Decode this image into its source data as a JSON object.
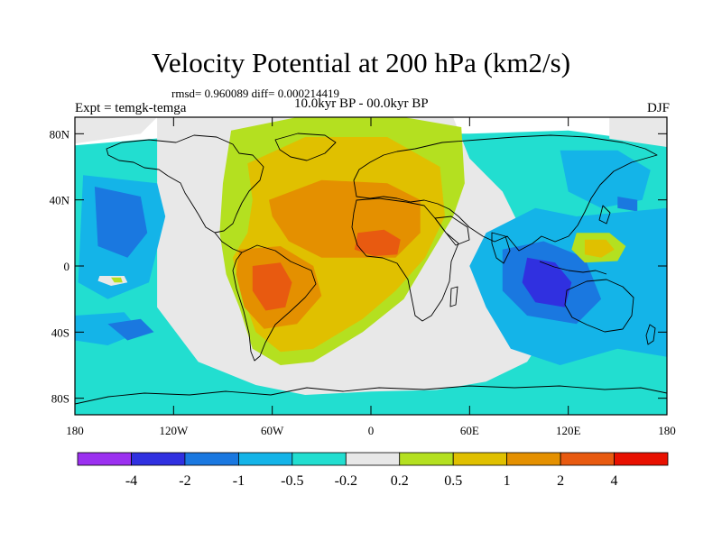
{
  "header": {
    "title": "Velocity Potential at 200 hPa (km2/s)",
    "stats": "rmsd= 0.960089 diff= 0.000214419",
    "period": "10.0kyr BP - 00.0kyr BP",
    "experiment": "Expt = temgk-temga",
    "season": "DJF"
  },
  "axes": {
    "lat_ticks": [
      {
        "label": "80N",
        "lat": 80
      },
      {
        "label": "40N",
        "lat": 40
      },
      {
        "label": "0",
        "lat": 0
      },
      {
        "label": "40S",
        "lat": -40
      },
      {
        "label": "80S",
        "lat": -80
      }
    ],
    "lon_ticks": [
      {
        "label": "180",
        "lon": -180
      },
      {
        "label": "120W",
        "lon": -120
      },
      {
        "label": "60W",
        "lon": -60
      },
      {
        "label": "0",
        "lon": 0
      },
      {
        "label": "60E",
        "lon": 60
      },
      {
        "label": "120E",
        "lon": 120
      },
      {
        "label": "180",
        "lon": 180
      }
    ],
    "lat_range": [
      -90,
      90
    ],
    "lon_range": [
      -180,
      180
    ]
  },
  "colorbar": {
    "colors": [
      "#9b30f0",
      "#3030e0",
      "#1a78e0",
      "#14b4e8",
      "#22ded0",
      "#e8e8e8",
      "#b4e020",
      "#e0c000",
      "#e49000",
      "#e85a10",
      "#e81000"
    ],
    "labels": [
      "-4",
      "-2",
      "-1",
      "-0.5",
      "-0.2",
      "0.2",
      "0.5",
      "1",
      "2",
      "4"
    ]
  },
  "chart_data": {
    "type": "heatmap",
    "title": "Velocity Potential at 200 hPa (km2/s)",
    "variable": "velocity potential difference",
    "units": "km2/s",
    "levels": [
      -4,
      -2,
      -1,
      -0.5,
      -0.2,
      0.2,
      0.5,
      1,
      2,
      4
    ],
    "regions": [
      {
        "name": "background",
        "level_index": 4,
        "polys": [
          [
            [
              -180,
              73
            ],
            [
              -180,
              -90
            ],
            [
              180,
              -90
            ],
            [
              180,
              73
            ],
            [
              150,
              78
            ],
            [
              120,
              82
            ],
            [
              60,
              80
            ],
            [
              -60,
              80
            ],
            [
              -120,
              78
            ]
          ]
        ]
      },
      {
        "name": "neutral-atlantic-band",
        "level_index": 5,
        "polys": [
          [
            [
              -130,
              90
            ],
            [
              -130,
              -25
            ],
            [
              -105,
              -58
            ],
            [
              -70,
              -72
            ],
            [
              -40,
              -78
            ],
            [
              0,
              -76
            ],
            [
              40,
              -75
            ],
            [
              70,
              -70
            ],
            [
              95,
              -58
            ],
            [
              110,
              -35
            ],
            [
              105,
              -5
            ],
            [
              90,
              25
            ],
            [
              80,
              45
            ],
            [
              60,
              65
            ],
            [
              50,
              90
            ]
          ],
          [
            [
              -180,
              90
            ],
            [
              -180,
              74
            ],
            [
              -140,
              80
            ],
            [
              -130,
              90
            ]
          ],
          [
            [
              145,
              90
            ],
            [
              145,
              77
            ],
            [
              180,
              72
            ],
            [
              180,
              90
            ]
          ]
        ]
      },
      {
        "name": "positive-lobe",
        "level_index": 6,
        "polys": [
          [
            [
              -85,
              82
            ],
            [
              -45,
              90
            ],
            [
              20,
              90
            ],
            [
              55,
              84
            ],
            [
              57,
              50
            ],
            [
              50,
              30
            ],
            [
              35,
              5
            ],
            [
              20,
              -20
            ],
            [
              -5,
              -40
            ],
            [
              -35,
              -58
            ],
            [
              -55,
              -60
            ],
            [
              -72,
              -50
            ],
            [
              -80,
              -25
            ],
            [
              -88,
              -5
            ],
            [
              -92,
              20
            ],
            [
              -90,
              50
            ]
          ]
        ]
      },
      {
        "name": "positive-lobe-0.5",
        "level_index": 7,
        "polys": [
          [
            [
              -75,
              62
            ],
            [
              -40,
              78
            ],
            [
              10,
              78
            ],
            [
              42,
              60
            ],
            [
              45,
              30
            ],
            [
              33,
              5
            ],
            [
              15,
              -15
            ],
            [
              -5,
              -32
            ],
            [
              -35,
              -50
            ],
            [
              -55,
              -52
            ],
            [
              -70,
              -40
            ],
            [
              -79,
              -15
            ],
            [
              -84,
              5
            ],
            [
              -75,
              20
            ],
            [
              -72,
              40
            ]
          ]
        ]
      },
      {
        "name": "africa-maximum",
        "level_index": 8,
        "polys": [
          [
            [
              -62,
              40
            ],
            [
              -30,
              52
            ],
            [
              10,
              50
            ],
            [
              30,
              40
            ],
            [
              30,
              20
            ],
            [
              15,
              5
            ],
            [
              -5,
              5
            ],
            [
              -30,
              5
            ],
            [
              -50,
              15
            ],
            [
              -60,
              30
            ]
          ]
        ]
      },
      {
        "name": "south-america-maximum",
        "level_index": 8,
        "polys": [
          [
            [
              -80,
              10
            ],
            [
              -55,
              12
            ],
            [
              -35,
              0
            ],
            [
              -30,
              -18
            ],
            [
              -45,
              -35
            ],
            [
              -65,
              -38
            ],
            [
              -77,
              -25
            ],
            [
              -82,
              -5
            ]
          ]
        ]
      },
      {
        "name": "south-america-core",
        "level_index": 9,
        "polys": [
          [
            [
              -72,
              0
            ],
            [
              -55,
              2
            ],
            [
              -48,
              -10
            ],
            [
              -52,
              -25
            ],
            [
              -64,
              -27
            ],
            [
              -72,
              -15
            ]
          ]
        ]
      },
      {
        "name": "africa-core",
        "level_index": 9,
        "polys": [
          [
            [
              -8,
              20
            ],
            [
              8,
              22
            ],
            [
              18,
              16
            ],
            [
              16,
              7
            ],
            [
              2,
              6
            ],
            [
              -10,
              10
            ]
          ]
        ]
      },
      {
        "name": "pacific-west-blue",
        "level_index": 3,
        "polys": [
          [
            [
              -175,
              55
            ],
            [
              -130,
              50
            ],
            [
              -125,
              30
            ],
            [
              -135,
              -10
            ],
            [
              -160,
              -20
            ],
            [
              -178,
              -10
            ]
          ]
        ]
      },
      {
        "name": "pacific-west-core",
        "level_index": 2,
        "polys": [
          [
            [
              -168,
              48
            ],
            [
              -140,
              42
            ],
            [
              -136,
              20
            ],
            [
              -148,
              5
            ],
            [
              -166,
              12
            ]
          ]
        ]
      },
      {
        "name": "pacific-east-blue",
        "level_index": 3,
        "polys": [
          [
            [
              -180,
              -30
            ],
            [
              -150,
              -28
            ],
            [
              -140,
              -40
            ],
            [
              -160,
              -48
            ],
            [
              -180,
              -45
            ]
          ]
        ]
      },
      {
        "name": "pacific-east-core",
        "level_index": 2,
        "polys": [
          [
            [
              -160,
              -35
            ],
            [
              -140,
              -32
            ],
            [
              -132,
              -40
            ],
            [
              -148,
              -45
            ]
          ]
        ]
      },
      {
        "name": "north-pacific-blue",
        "level_index": 3,
        "polys": [
          [
            [
              115,
              70
            ],
            [
              150,
              70
            ],
            [
              170,
              58
            ],
            [
              165,
              40
            ],
            [
              140,
              35
            ],
            [
              120,
              45
            ]
          ]
        ]
      },
      {
        "name": "north-pacific-core",
        "level_index": 2,
        "polys": [
          [
            [
              150,
              42
            ],
            [
              162,
              40
            ],
            [
              162,
              33
            ],
            [
              150,
              35
            ]
          ]
        ]
      },
      {
        "name": "indian-ocean-blue",
        "level_index": 3,
        "polys": [
          [
            [
              70,
              20
            ],
            [
              100,
              35
            ],
            [
              125,
              30
            ],
            [
              180,
              35
            ],
            [
              180,
              -55
            ],
            [
              150,
              -50
            ],
            [
              115,
              -60
            ],
            [
              85,
              -50
            ],
            [
              70,
              -25
            ],
            [
              60,
              0
            ]
          ]
        ]
      },
      {
        "name": "indian-ocean-2",
        "level_index": 2,
        "polys": [
          [
            [
              80,
              10
            ],
            [
              105,
              15
            ],
            [
              130,
              5
            ],
            [
              140,
              -20
            ],
            [
              125,
              -35
            ],
            [
              95,
              -30
            ],
            [
              80,
              -15
            ]
          ]
        ]
      },
      {
        "name": "indian-ocean-core",
        "level_index": 1,
        "polys": [
          [
            [
              95,
              5
            ],
            [
              112,
              2
            ],
            [
              122,
              -10
            ],
            [
              118,
              -25
            ],
            [
              100,
              -22
            ],
            [
              92,
              -10
            ]
          ]
        ]
      },
      {
        "name": "west-pacific-yellow",
        "level_index": 6,
        "polys": [
          [
            [
              125,
              20
            ],
            [
              145,
              20
            ],
            [
              155,
              12
            ],
            [
              150,
              3
            ],
            [
              130,
              2
            ],
            [
              122,
              10
            ]
          ]
        ]
      },
      {
        "name": "west-pacific-orange",
        "level_index": 7,
        "polys": [
          [
            [
              130,
              16
            ],
            [
              143,
              16
            ],
            [
              148,
              10
            ],
            [
              140,
              5
            ],
            [
              130,
              7
            ]
          ]
        ]
      },
      {
        "name": "small-white-island",
        "level_index": 5,
        "polys": [
          [
            [
              -165,
              -6
            ],
            [
              -150,
              -6
            ],
            [
              -148,
              -10
            ],
            [
              -158,
              -12
            ],
            [
              -166,
              -9
            ]
          ]
        ]
      },
      {
        "name": "small-green-spot",
        "level_index": 6,
        "polys": [
          [
            [
              -158,
              -7
            ],
            [
              -152,
              -7
            ],
            [
              -151,
              -10
            ],
            [
              -156,
              -10
            ]
          ]
        ]
      }
    ]
  }
}
